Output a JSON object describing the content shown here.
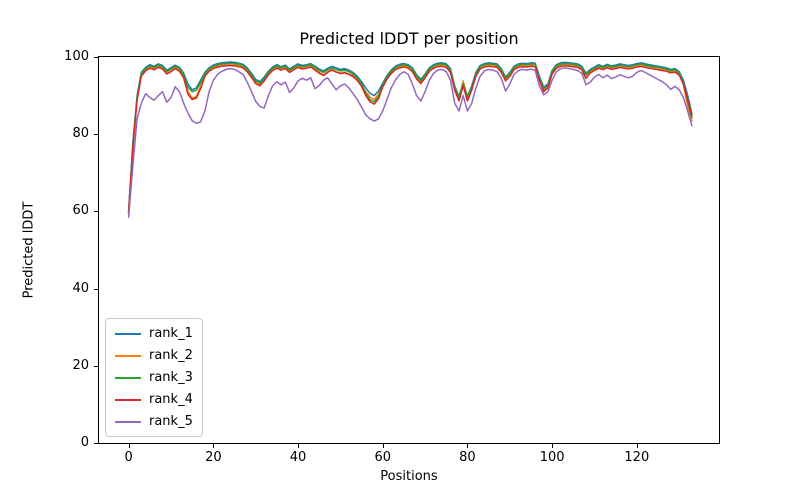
{
  "chart_data": {
    "type": "line",
    "title": "Predicted lDDT per position",
    "xlabel": "Positions",
    "ylabel": "Predicted lDDT",
    "xlim": [
      -7.0,
      139.4
    ],
    "ylim": [
      0,
      100
    ],
    "xticks": [
      0,
      20,
      40,
      60,
      80,
      100,
      120
    ],
    "yticks": [
      0,
      20,
      40,
      60,
      80,
      100
    ],
    "grid": false,
    "legend_position": "lower left",
    "x_start": 0,
    "x_step": 1,
    "n_points": 134,
    "series": [
      {
        "name": "rank_1",
        "color": "#1f77b4",
        "values": [
          60.0,
          78.0,
          90.0,
          96.0,
          97.3,
          98.0,
          97.6,
          98.2,
          97.8,
          96.6,
          97.2,
          97.9,
          97.3,
          95.8,
          93.0,
          91.5,
          92.0,
          94.0,
          96.0,
          97.2,
          97.9,
          98.3,
          98.5,
          98.6,
          98.7,
          98.6,
          98.4,
          98.1,
          97.2,
          95.8,
          94.2,
          93.6,
          94.8,
          96.3,
          97.4,
          98.0,
          97.5,
          97.9,
          96.9,
          97.6,
          98.2,
          97.8,
          98.0,
          98.3,
          97.6,
          96.9,
          96.4,
          97.1,
          97.6,
          97.2,
          96.8,
          97.0,
          96.6,
          96.0,
          95.0,
          93.6,
          92.0,
          90.6,
          90.0,
          91.2,
          93.2,
          95.2,
          96.6,
          97.6,
          98.1,
          98.3,
          98.0,
          97.2,
          95.4,
          94.2,
          95.6,
          97.2,
          98.0,
          98.4,
          98.5,
          98.2,
          97.0,
          92.5,
          89.8,
          93.4,
          89.8,
          92.5,
          96.0,
          97.8,
          98.3,
          98.5,
          98.4,
          98.2,
          97.0,
          94.8,
          96.0,
          97.6,
          98.2,
          98.4,
          98.3,
          98.5,
          98.4,
          95.0,
          92.2,
          93.0,
          96.5,
          98.0,
          98.5,
          98.6,
          98.5,
          98.4,
          98.2,
          97.6,
          95.8,
          96.8,
          97.4,
          98.0,
          97.6,
          98.1,
          97.7,
          97.9,
          98.2,
          98.0,
          97.8,
          98.0,
          98.3,
          98.5,
          98.2,
          98.0,
          97.8,
          97.6,
          97.4,
          97.2,
          96.8,
          97.0,
          96.2,
          94.0,
          90.0,
          85.2
        ]
      },
      {
        "name": "rank_2",
        "color": "#ff7f0e",
        "values": [
          60.2,
          77.0,
          89.2,
          95.4,
          96.8,
          97.5,
          97.1,
          97.7,
          97.3,
          96.0,
          96.7,
          97.4,
          96.7,
          94.8,
          91.2,
          89.3,
          89.8,
          92.5,
          95.3,
          96.7,
          97.4,
          97.8,
          98.0,
          98.1,
          98.2,
          98.1,
          97.9,
          97.6,
          96.6,
          95.0,
          93.4,
          92.8,
          94.0,
          95.7,
          96.9,
          97.5,
          97.0,
          97.4,
          96.3,
          97.1,
          97.7,
          97.3,
          97.5,
          97.8,
          97.0,
          96.0,
          95.4,
          96.2,
          96.8,
          96.2,
          95.8,
          96.1,
          95.6,
          95.2,
          94.2,
          92.6,
          91.0,
          89.6,
          89.0,
          90.4,
          92.5,
          94.6,
          96.1,
          97.1,
          97.6,
          97.8,
          97.5,
          96.6,
          94.7,
          93.5,
          95.0,
          96.7,
          97.5,
          97.9,
          98.0,
          97.7,
          96.4,
          92.0,
          89.2,
          93.8,
          89.2,
          91.8,
          95.4,
          97.3,
          97.8,
          98.0,
          97.9,
          97.7,
          96.4,
          94.2,
          95.4,
          97.1,
          97.7,
          97.9,
          97.8,
          98.0,
          97.9,
          94.2,
          91.4,
          92.4,
          96.0,
          97.5,
          98.0,
          98.1,
          98.0,
          97.9,
          97.7,
          97.1,
          95.2,
          96.3,
          96.9,
          97.5,
          97.1,
          97.6,
          97.2,
          97.4,
          97.7,
          97.5,
          97.3,
          97.5,
          97.8,
          98.0,
          97.7,
          97.5,
          97.3,
          97.1,
          96.9,
          96.7,
          96.2,
          96.5,
          95.6,
          92.8,
          87.2,
          83.4
        ]
      },
      {
        "name": "rank_3",
        "color": "#2ca02c",
        "values": [
          59.8,
          77.5,
          89.6,
          95.7,
          97.0,
          97.7,
          97.3,
          97.9,
          97.5,
          96.3,
          96.9,
          97.6,
          97.0,
          95.4,
          92.2,
          91.0,
          91.4,
          93.4,
          95.7,
          96.9,
          97.6,
          98.0,
          98.2,
          98.3,
          98.4,
          98.3,
          98.1,
          97.8,
          96.9,
          95.4,
          93.8,
          93.2,
          94.4,
          96.0,
          97.1,
          97.7,
          97.2,
          97.6,
          96.6,
          97.3,
          97.9,
          97.5,
          97.7,
          98.0,
          97.3,
          96.5,
          96.0,
          96.7,
          97.2,
          96.8,
          96.4,
          96.6,
          96.2,
          95.6,
          94.6,
          93.1,
          90.6,
          89.0,
          88.4,
          89.8,
          92.8,
          94.9,
          96.3,
          97.3,
          97.8,
          98.0,
          97.7,
          96.9,
          95.0,
          93.8,
          95.3,
          96.9,
          97.7,
          98.1,
          98.2,
          97.9,
          96.7,
          92.2,
          89.5,
          93.1,
          89.5,
          92.1,
          95.7,
          97.5,
          98.0,
          98.2,
          98.1,
          97.9,
          96.7,
          94.5,
          95.7,
          97.3,
          97.9,
          98.1,
          98.0,
          98.2,
          98.1,
          94.6,
          91.8,
          92.7,
          96.2,
          97.7,
          98.2,
          98.3,
          98.2,
          98.1,
          97.9,
          97.3,
          95.5,
          96.5,
          97.1,
          97.7,
          97.3,
          97.8,
          97.4,
          97.6,
          97.9,
          97.7,
          97.5,
          97.7,
          98.0,
          98.2,
          97.9,
          97.7,
          97.5,
          97.3,
          97.1,
          96.9,
          96.5,
          96.7,
          95.9,
          93.2,
          88.5,
          84.2
        ]
      },
      {
        "name": "rank_4",
        "color": "#d62728",
        "values": [
          59.5,
          76.5,
          88.8,
          95.0,
          96.4,
          97.1,
          96.7,
          97.3,
          96.9,
          95.6,
          96.2,
          97.0,
          96.3,
          94.6,
          90.4,
          89.0,
          89.4,
          91.8,
          95.0,
          96.3,
          97.0,
          97.4,
          97.6,
          97.7,
          97.8,
          97.7,
          97.5,
          97.2,
          96.2,
          94.7,
          93.1,
          92.5,
          93.8,
          95.4,
          96.5,
          97.1,
          96.6,
          97.0,
          96.0,
          96.7,
          97.3,
          96.9,
          97.1,
          97.4,
          96.6,
          95.8,
          95.2,
          96.0,
          96.6,
          96.1,
          95.7,
          95.9,
          95.5,
          94.9,
          93.9,
          92.4,
          90.0,
          88.4,
          87.8,
          89.2,
          92.2,
          94.3,
          95.7,
          96.7,
          97.2,
          97.4,
          97.1,
          96.2,
          94.3,
          93.1,
          94.6,
          96.3,
          97.1,
          97.5,
          97.6,
          97.3,
          96.0,
          91.4,
          88.6,
          92.6,
          88.6,
          91.4,
          95.0,
          96.9,
          97.4,
          97.6,
          97.5,
          97.3,
          96.0,
          93.8,
          95.0,
          96.7,
          97.3,
          97.5,
          97.4,
          97.6,
          97.5,
          94.0,
          91.0,
          92.0,
          95.6,
          97.1,
          97.6,
          97.7,
          97.6,
          97.5,
          97.3,
          96.7,
          94.4,
          95.9,
          96.5,
          97.1,
          96.7,
          97.2,
          96.8,
          97.0,
          97.3,
          97.1,
          96.9,
          97.1,
          97.4,
          97.6,
          97.3,
          97.1,
          96.9,
          96.7,
          96.5,
          96.3,
          95.9,
          96.1,
          95.3,
          93.0,
          88.8,
          84.8
        ]
      },
      {
        "name": "rank_5",
        "color": "#9467bd",
        "values": [
          58.5,
          72.0,
          84.0,
          88.0,
          90.5,
          89.5,
          88.8,
          90.0,
          91.0,
          88.3,
          89.5,
          92.3,
          91.0,
          88.0,
          85.5,
          83.5,
          82.8,
          83.2,
          86.0,
          91.0,
          94.0,
          95.5,
          96.3,
          96.8,
          97.0,
          96.8,
          96.2,
          95.5,
          93.5,
          91.0,
          88.5,
          87.2,
          86.8,
          90.0,
          92.5,
          93.6,
          92.8,
          93.5,
          90.8,
          92.0,
          93.8,
          94.5,
          94.0,
          94.6,
          91.8,
          92.6,
          94.0,
          94.6,
          93.0,
          91.5,
          92.5,
          93.0,
          92.0,
          90.5,
          89.0,
          87.0,
          85.0,
          84.0,
          83.4,
          84.0,
          86.0,
          89.0,
          92.0,
          94.0,
          95.5,
          96.2,
          95.5,
          93.0,
          90.0,
          88.6,
          91.0,
          94.0,
          95.8,
          96.6,
          96.8,
          96.2,
          94.0,
          88.0,
          86.0,
          90.0,
          86.0,
          88.0,
          92.0,
          95.0,
          96.4,
          96.8,
          96.6,
          96.2,
          94.5,
          91.2,
          93.0,
          95.5,
          96.5,
          96.8,
          96.6,
          96.9,
          96.5,
          92.5,
          90.2,
          91.0,
          94.0,
          96.2,
          97.0,
          97.2,
          97.0,
          96.8,
          96.5,
          95.8,
          92.8,
          93.5,
          94.8,
          95.5,
          94.6,
          95.3,
          94.4,
          94.8,
          95.4,
          95.0,
          94.6,
          95.0,
          96.0,
          96.5,
          96.0,
          95.4,
          94.8,
          94.2,
          93.6,
          92.8,
          91.6,
          92.4,
          91.5,
          89.5,
          86.0,
          82.2
        ]
      }
    ]
  }
}
